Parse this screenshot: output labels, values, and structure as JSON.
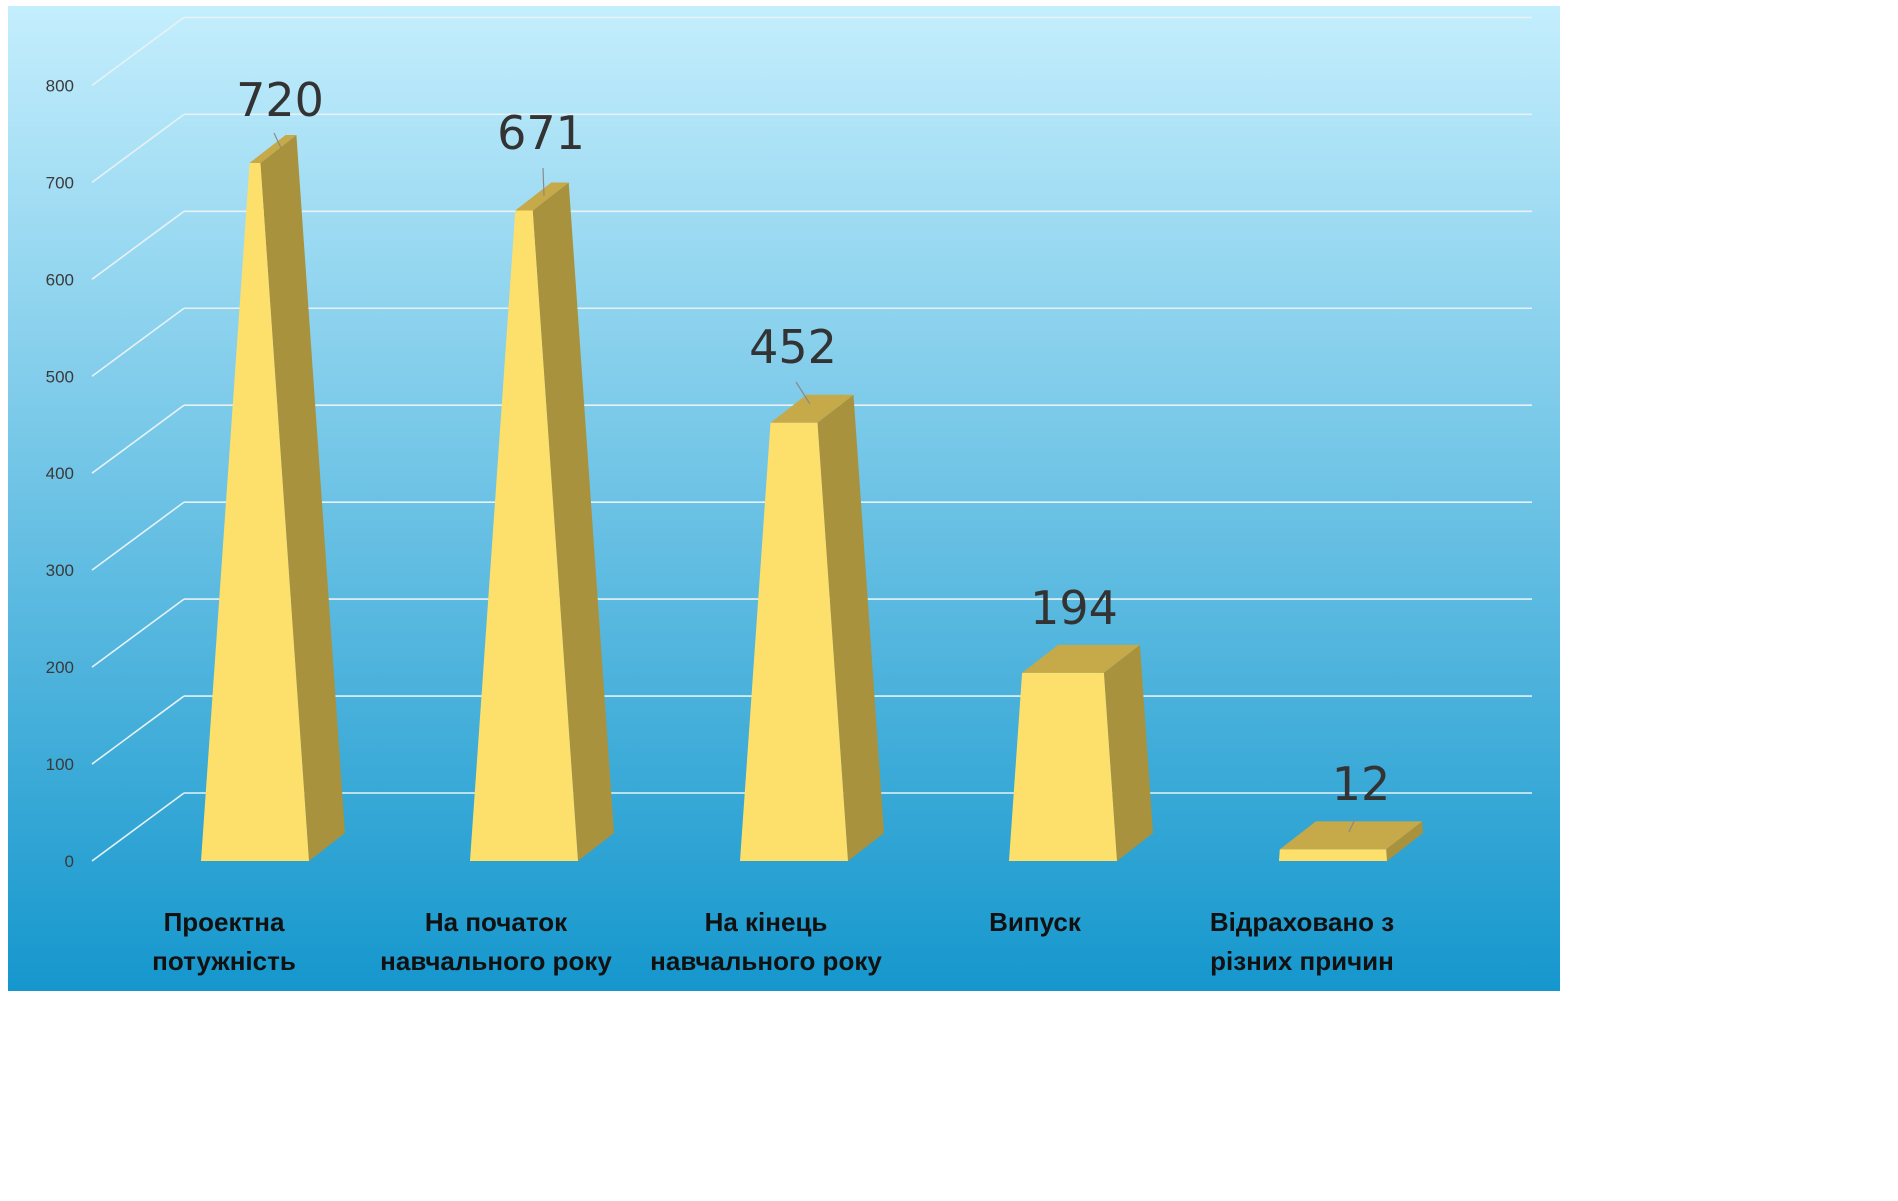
{
  "chart_data": {
    "type": "bar",
    "style": "3d-pyramid-truncated",
    "categories": [
      [
        "Проектна",
        "потужність"
      ],
      [
        "На початок",
        "навчального року"
      ],
      [
        "На кінець",
        "навчального року"
      ],
      [
        "Випуск"
      ],
      [
        "Відраховано з",
        "різних причин"
      ]
    ],
    "values": [
      720,
      671,
      452,
      194,
      12
    ],
    "ylim": [
      0,
      800
    ],
    "yticks": [
      0,
      100,
      200,
      300,
      400,
      500,
      600,
      700,
      800
    ],
    "grid": true,
    "legend": "none",
    "colors": {
      "bar_front": "#FDE06B",
      "bar_side": "#A8923E",
      "bar_top": "#C6A948",
      "grid": "#E6F2F6",
      "bg_top": "#C4EEFD",
      "bg_bottom": "#1597CD"
    }
  }
}
